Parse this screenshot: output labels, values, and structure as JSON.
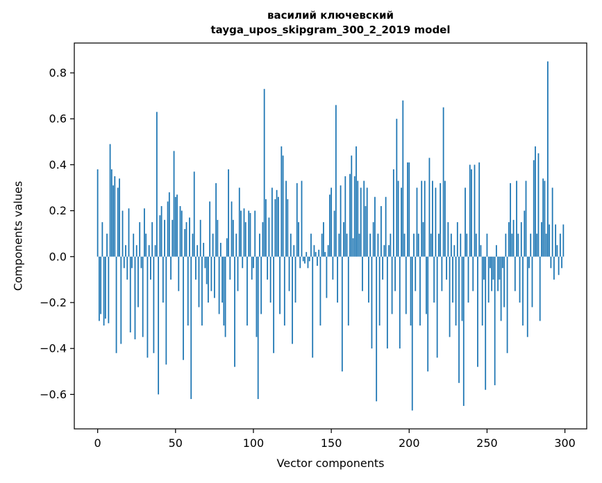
{
  "figure": {
    "title_line1": "василий ключевский",
    "title_line2": "tayga_upos_skipgram_300_2_2019 model",
    "xlabel": "Vector components",
    "ylabel": "Components values"
  },
  "chart_data": {
    "type": "bar",
    "title": "василий ключевский tayga_upos_skipgram_300_2_2019 model",
    "xlabel": "Vector components",
    "ylabel": "Components values",
    "bar_color": "#1f77b4",
    "n_components": 300,
    "x_start": 0,
    "xlim": [
      -15,
      314
    ],
    "ylim": [
      -0.75,
      0.93
    ],
    "xticks": [
      0,
      50,
      100,
      150,
      200,
      250,
      300
    ],
    "yticks": [
      -0.6,
      -0.4,
      -0.2,
      0.0,
      0.2,
      0.4,
      0.6,
      0.8
    ],
    "grid": false,
    "legend": "none",
    "values": [
      0.38,
      -0.28,
      -0.25,
      0.15,
      -0.3,
      -0.27,
      0.1,
      -0.29,
      0.49,
      0.38,
      0.31,
      0.35,
      -0.42,
      0.3,
      0.34,
      -0.38,
      0.2,
      -0.05,
      0.05,
      -0.1,
      0.21,
      -0.33,
      -0.05,
      0.1,
      -0.36,
      0.05,
      -0.22,
      0.15,
      -0.05,
      -0.35,
      0.21,
      0.1,
      -0.44,
      0.05,
      -0.1,
      0.15,
      -0.42,
      0.05,
      0.63,
      -0.6,
      0.18,
      0.22,
      -0.2,
      0.16,
      -0.47,
      0.24,
      0.28,
      -0.1,
      0.16,
      0.46,
      0.26,
      0.27,
      -0.15,
      0.22,
      0.2,
      -0.45,
      0.12,
      0.15,
      -0.3,
      0.17,
      -0.62,
      0.1,
      0.37,
      -0.1,
      0.05,
      -0.22,
      0.16,
      -0.3,
      0.06,
      -0.05,
      -0.12,
      -0.2,
      0.24,
      -0.15,
      0.1,
      -0.18,
      0.32,
      0.16,
      -0.25,
      0.06,
      -0.2,
      -0.3,
      -0.35,
      0.08,
      0.38,
      -0.1,
      0.24,
      0.16,
      -0.48,
      0.1,
      -0.15,
      0.3,
      0.2,
      -0.05,
      0.21,
      0.15,
      -0.3,
      0.2,
      0.19,
      -0.1,
      -0.05,
      0.2,
      -0.35,
      -0.62,
      0.1,
      -0.25,
      0.15,
      0.73,
      0.25,
      -0.1,
      0.17,
      -0.2,
      0.3,
      -0.42,
      0.25,
      0.29,
      0.26,
      -0.25,
      0.48,
      0.44,
      -0.3,
      0.33,
      0.25,
      -0.15,
      0.1,
      -0.38,
      0.05,
      -0.2,
      0.32,
      0.15,
      -0.05,
      0.33,
      -0.02,
      -0.03,
      0.02,
      -0.05,
      -0.02,
      0.1,
      -0.44,
      0.05,
      0.02,
      -0.04,
      0.03,
      -0.3,
      0.1,
      0.15,
      0.02,
      -0.18,
      0.05,
      0.27,
      0.3,
      -0.1,
      0.2,
      0.66,
      -0.2,
      0.1,
      0.31,
      -0.5,
      0.15,
      0.35,
      0.1,
      -0.3,
      0.36,
      0.44,
      0.08,
      0.35,
      0.48,
      0.33,
      0.1,
      0.3,
      -0.15,
      0.33,
      0.22,
      0.3,
      -0.2,
      0.1,
      -0.4,
      0.15,
      0.26,
      -0.63,
      0.1,
      -0.3,
      0.22,
      -0.1,
      0.05,
      0.26,
      -0.4,
      0.05,
      0.1,
      -0.25,
      0.38,
      -0.15,
      0.6,
      0.33,
      -0.4,
      0.3,
      0.68,
      0.1,
      -0.25,
      0.41,
      0.41,
      -0.3,
      -0.67,
      0.1,
      -0.15,
      0.3,
      0.1,
      -0.3,
      0.33,
      0.15,
      0.33,
      -0.25,
      -0.5,
      0.43,
      0.1,
      0.33,
      -0.2,
      0.3,
      -0.44,
      0.1,
      0.32,
      -0.15,
      0.65,
      0.33,
      -0.1,
      0.15,
      -0.35,
      0.1,
      -0.2,
      0.05,
      -0.3,
      0.15,
      -0.55,
      0.1,
      -0.28,
      -0.65,
      0.3,
      0.1,
      -0.2,
      0.4,
      0.38,
      -0.15,
      0.4,
      0.1,
      -0.48,
      0.41,
      0.05,
      -0.3,
      -0.1,
      -0.58,
      0.1,
      -0.2,
      -0.05,
      -0.15,
      -0.1,
      -0.56,
      0.05,
      -0.15,
      -0.1,
      -0.28,
      -0.05,
      -0.22,
      0.1,
      -0.42,
      0.15,
      0.32,
      0.1,
      0.16,
      -0.15,
      0.33,
      0.1,
      -0.2,
      0.15,
      -0.3,
      0.2,
      0.33,
      -0.35,
      -0.05,
      0.1,
      -0.22,
      0.42,
      0.48,
      0.1,
      0.45,
      -0.28,
      0.15,
      0.34,
      0.33,
      0.1,
      0.85,
      0.14,
      -0.05,
      0.3,
      -0.1,
      0.14,
      0.05,
      -0.08,
      0.1,
      -0.05,
      0.14
    ]
  }
}
